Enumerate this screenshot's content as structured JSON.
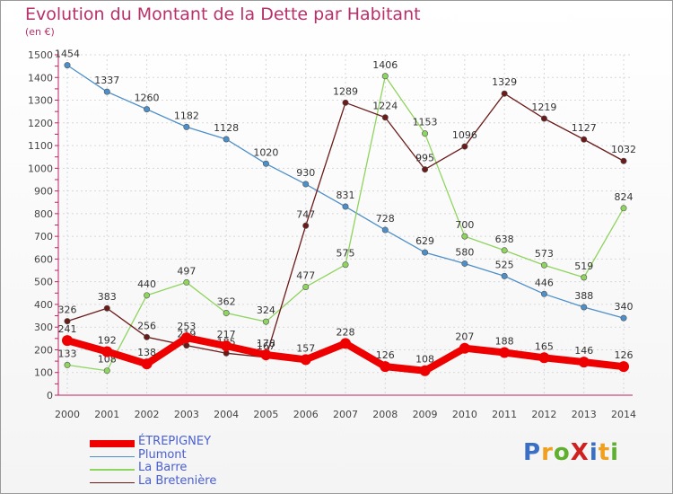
{
  "chart_data": {
    "type": "line",
    "title": "Evolution du Montant de la Dette par Habitant",
    "subtitle": "(en €)",
    "x": [
      2000,
      2001,
      2002,
      2003,
      2004,
      2005,
      2006,
      2007,
      2008,
      2009,
      2010,
      2011,
      2012,
      2013,
      2014
    ],
    "ylim": [
      0,
      1500
    ],
    "yticks": [
      0,
      100,
      200,
      300,
      400,
      500,
      600,
      700,
      800,
      900,
      1000,
      1100,
      1200,
      1300,
      1400,
      1500
    ],
    "grid": true,
    "legend_position": "bottom-left",
    "series": [
      {
        "name": "ÉTREPIGNEY",
        "color": "#ee0000",
        "values": [
          241,
          192,
          138,
          253,
          217,
          178,
          157,
          228,
          126,
          108,
          207,
          188,
          165,
          146,
          126
        ]
      },
      {
        "name": "Plumont",
        "color": "#4d8fc9",
        "values": [
          1454,
          1337,
          1260,
          1182,
          1128,
          1020,
          930,
          831,
          728,
          629,
          580,
          525,
          446,
          388,
          340
        ]
      },
      {
        "name": "La Barre",
        "color": "#8fd45e",
        "values": [
          133,
          108,
          440,
          497,
          362,
          324,
          477,
          575,
          1406,
          1153,
          700,
          638,
          573,
          519,
          824
        ]
      },
      {
        "name": "La Bretenière",
        "color": "#6b1a1a",
        "values": [
          326,
          383,
          256,
          219,
          185,
          167,
          747,
          1289,
          1224,
          995,
          1096,
          1329,
          1219,
          1127,
          1032
        ]
      }
    ]
  },
  "logo": {
    "text": "ProXiti",
    "colors": [
      "#3b6fc4",
      "#f0a020",
      "#60b030",
      "#d02020",
      "#3b6fc4",
      "#f0a020",
      "#60b030"
    ]
  }
}
